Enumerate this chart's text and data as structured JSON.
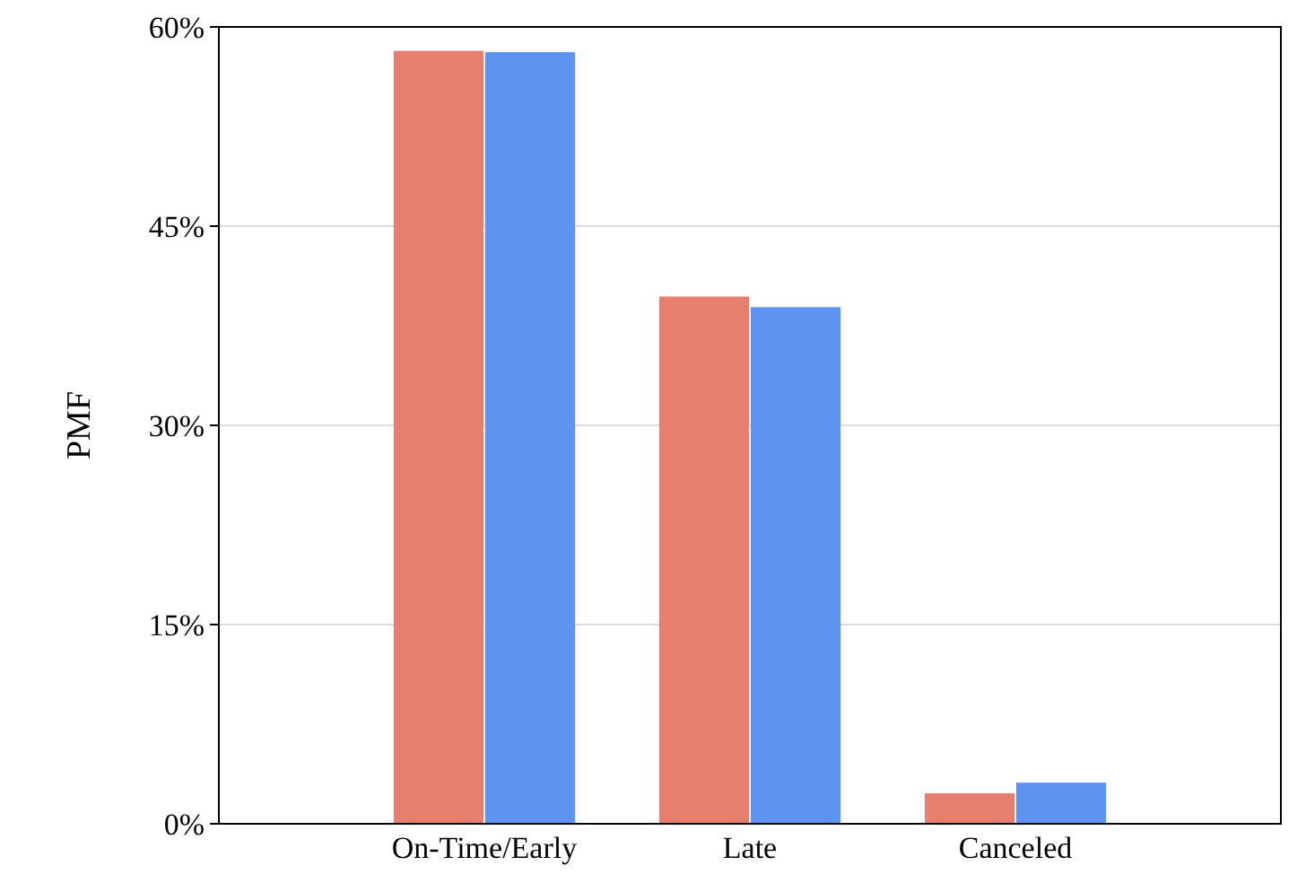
{
  "chart_data": {
    "type": "bar",
    "ylabel": "PMF",
    "categories": [
      "On-Time/Early",
      "Late",
      "Canceled"
    ],
    "series": [
      {
        "color": "#e77f6e",
        "values": [
          58.2,
          39.7,
          2.3
        ]
      },
      {
        "color": "#5f93f2",
        "values": [
          58.1,
          38.9,
          3.1
        ]
      }
    ],
    "ylim": [
      0,
      60
    ],
    "yticks": [
      {
        "value": 0,
        "label": "0%"
      },
      {
        "value": 15,
        "label": "15%"
      },
      {
        "value": 30,
        "label": "30%"
      },
      {
        "value": 45,
        "label": "45%"
      },
      {
        "value": 60,
        "label": "60%"
      }
    ],
    "grid": "y"
  }
}
